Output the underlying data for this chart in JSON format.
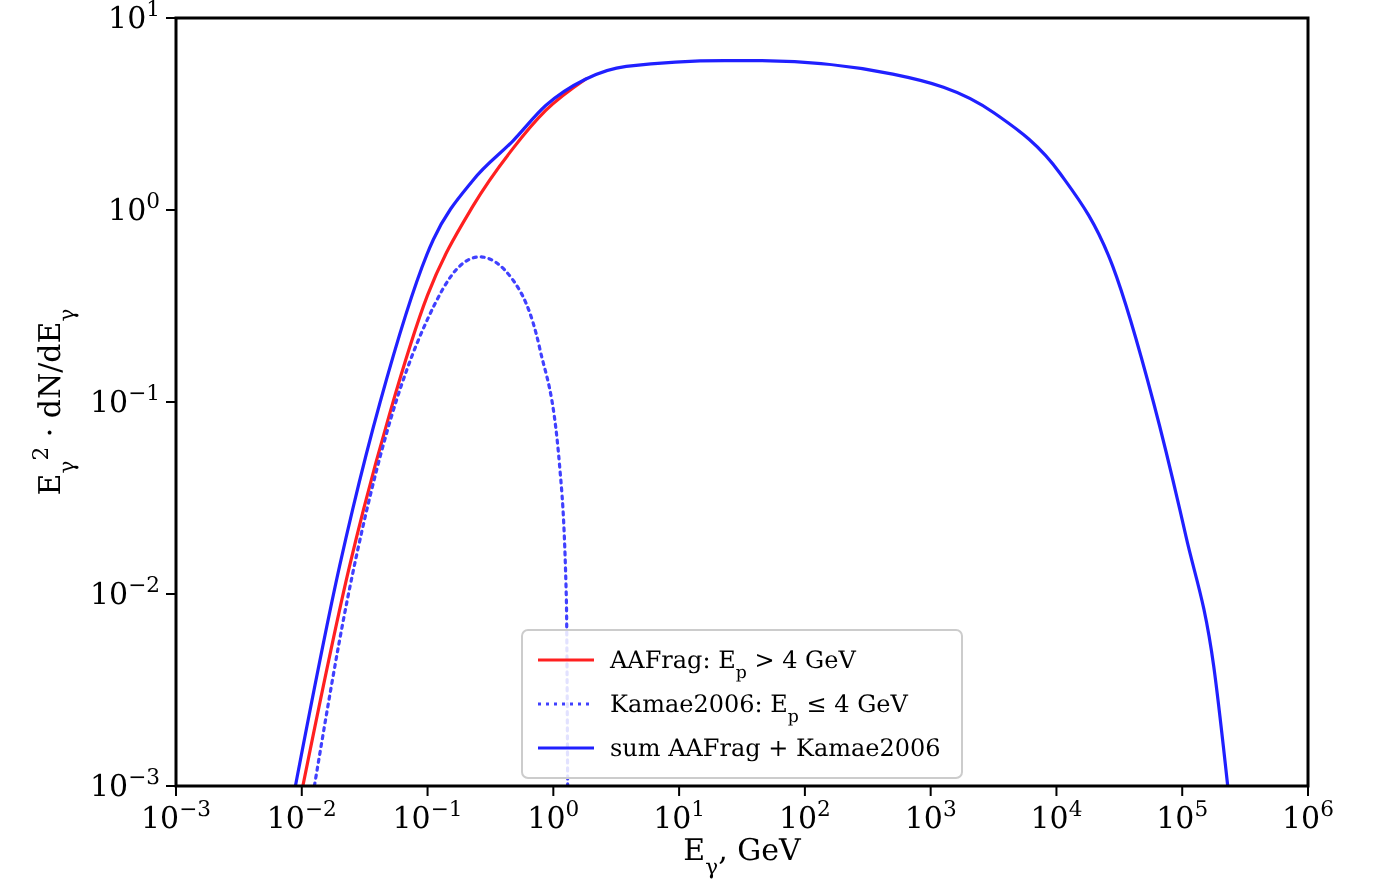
{
  "chart_data": {
    "type": "line",
    "xlabel": "E$_{γ}$, GeV",
    "ylabel": "E$_{γ}$$^{2}$ · dN/dE$_{γ}$",
    "log": "xy",
    "legend": "bottom",
    "grid": false,
    "xlim": [
      0.001,
      1000000
    ],
    "ylim": [
      0.001,
      10
    ],
    "xticks": [
      {
        "value": 0.001,
        "label": "10$^{−3}$"
      },
      {
        "value": 0.01,
        "label": "10$^{−2}$"
      },
      {
        "value": 0.1,
        "label": "10$^{−1}$"
      },
      {
        "value": 1,
        "label": "10$^{0}$"
      },
      {
        "value": 10,
        "label": "10$^{1}$"
      },
      {
        "value": 100,
        "label": "10$^{2}$"
      },
      {
        "value": 1000,
        "label": "10$^{3}$"
      },
      {
        "value": 10000,
        "label": "10$^{4}$"
      },
      {
        "value": 100000,
        "label": "10$^{5}$"
      },
      {
        "value": 1000000,
        "label": "10$^{6}$"
      }
    ],
    "yticks": [
      {
        "value": 0.001,
        "label": "10$^{−3}$"
      },
      {
        "value": 0.01,
        "label": "10$^{−2}$"
      },
      {
        "value": 0.1,
        "label": "10$^{−1}$"
      },
      {
        "value": 1,
        "label": "10$^{0}$"
      },
      {
        "value": 10,
        "label": "10$^{1}$"
      }
    ],
    "series": [
      {
        "name": "AAFrag: E$_{p}$ > 4 GeV",
        "color": "#ff2020",
        "line_style": "solid",
        "x": [
          0.0102,
          0.024,
          0.05,
          0.1,
          0.23,
          0.48,
          0.87,
          1.8
        ],
        "values": [
          0.001,
          0.014,
          0.087,
          0.36,
          1.05,
          2.1,
          3.3,
          4.8
        ]
      },
      {
        "name": "Kamae2006: E$_{p}$ ≤ 4 GeV",
        "color": "#4040ff",
        "line_style": "dotted",
        "x": [
          0.0126,
          0.023,
          0.047,
          0.1,
          0.18,
          0.26,
          0.48,
          0.78,
          1.12,
          1.27,
          1.3
        ],
        "values": [
          0.001,
          0.0093,
          0.068,
          0.27,
          0.51,
          0.57,
          0.43,
          0.19,
          0.047,
          0.0093,
          0.001
        ]
      },
      {
        "name": "sum AAFrag + Kamae2006",
        "color": "#2020ff",
        "line_style": "solid",
        "x": [
          0.0089,
          0.02,
          0.042,
          0.111,
          0.23,
          0.48,
          0.87,
          1.8,
          3.8,
          23,
          44,
          500,
          3200,
          10700,
          28000,
          59000,
          107000,
          178000,
          230000
        ],
        "values": [
          0.001,
          0.014,
          0.1,
          0.7,
          1.43,
          2.3,
          3.5,
          4.8,
          5.6,
          6.0,
          6.0,
          5.1,
          3.2,
          1.55,
          0.51,
          0.1,
          0.02,
          0.0042,
          0.001
        ]
      }
    ]
  }
}
